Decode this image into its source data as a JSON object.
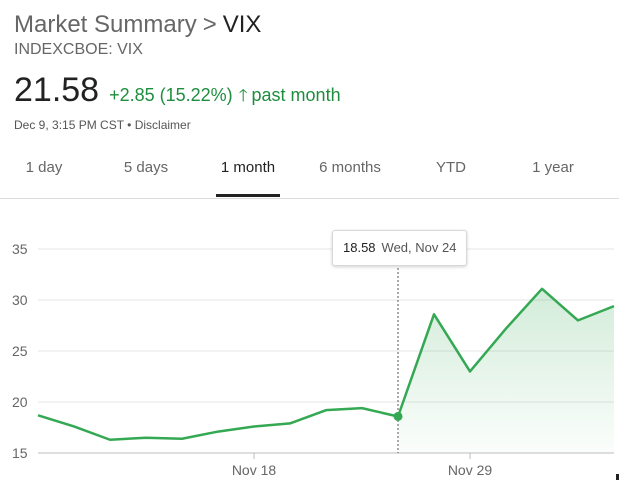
{
  "header": {
    "breadcrumb_link": "Market Summary",
    "breadcrumb_sep": ">",
    "title": "VIX",
    "ticker": "INDEXCBOE: VIX",
    "price": "21.58",
    "change": "+2.85 (15.22%)",
    "period": "past month",
    "timestamp": "Dec 9, 3:15 PM CST • ",
    "disclaimer": "Disclaimer"
  },
  "tabs": [
    {
      "label": "1 day",
      "active": false
    },
    {
      "label": "5 days",
      "active": false
    },
    {
      "label": "1 month",
      "active": true
    },
    {
      "label": "6 months",
      "active": false
    },
    {
      "label": "YTD",
      "active": false
    },
    {
      "label": "1 year",
      "active": false
    }
  ],
  "tooltip": {
    "value": "18.58",
    "date": "Wed, Nov 24"
  },
  "colors": {
    "positive": "#1e8e3e",
    "line": "#34a853",
    "text": "#222222",
    "muted": "#666666"
  },
  "icons": {
    "change_arrow": "arrow-up-icon"
  },
  "chart_data": {
    "type": "area",
    "x": [
      "Nov 10",
      "Nov 11",
      "Nov 12",
      "Nov 15",
      "Nov 16",
      "Nov 17",
      "Nov 18",
      "Nov 19",
      "Nov 22",
      "Nov 23",
      "Nov 24",
      "Nov 26",
      "Nov 29",
      "Nov 30",
      "Dec 1",
      "Dec 2",
      "Dec 3"
    ],
    "values": [
      18.7,
      17.6,
      16.3,
      16.5,
      16.4,
      17.1,
      17.6,
      17.9,
      19.2,
      19.4,
      18.58,
      28.6,
      23.0,
      27.2,
      31.1,
      28.0,
      29.4
    ],
    "ylim": [
      15,
      35
    ],
    "yticks": [
      15,
      20,
      25,
      30,
      35
    ],
    "xticks": [
      {
        "label": "Nov 18",
        "index": 6
      },
      {
        "label": "Nov 29",
        "index": 12
      }
    ],
    "highlight_index": 10,
    "grid": true
  }
}
